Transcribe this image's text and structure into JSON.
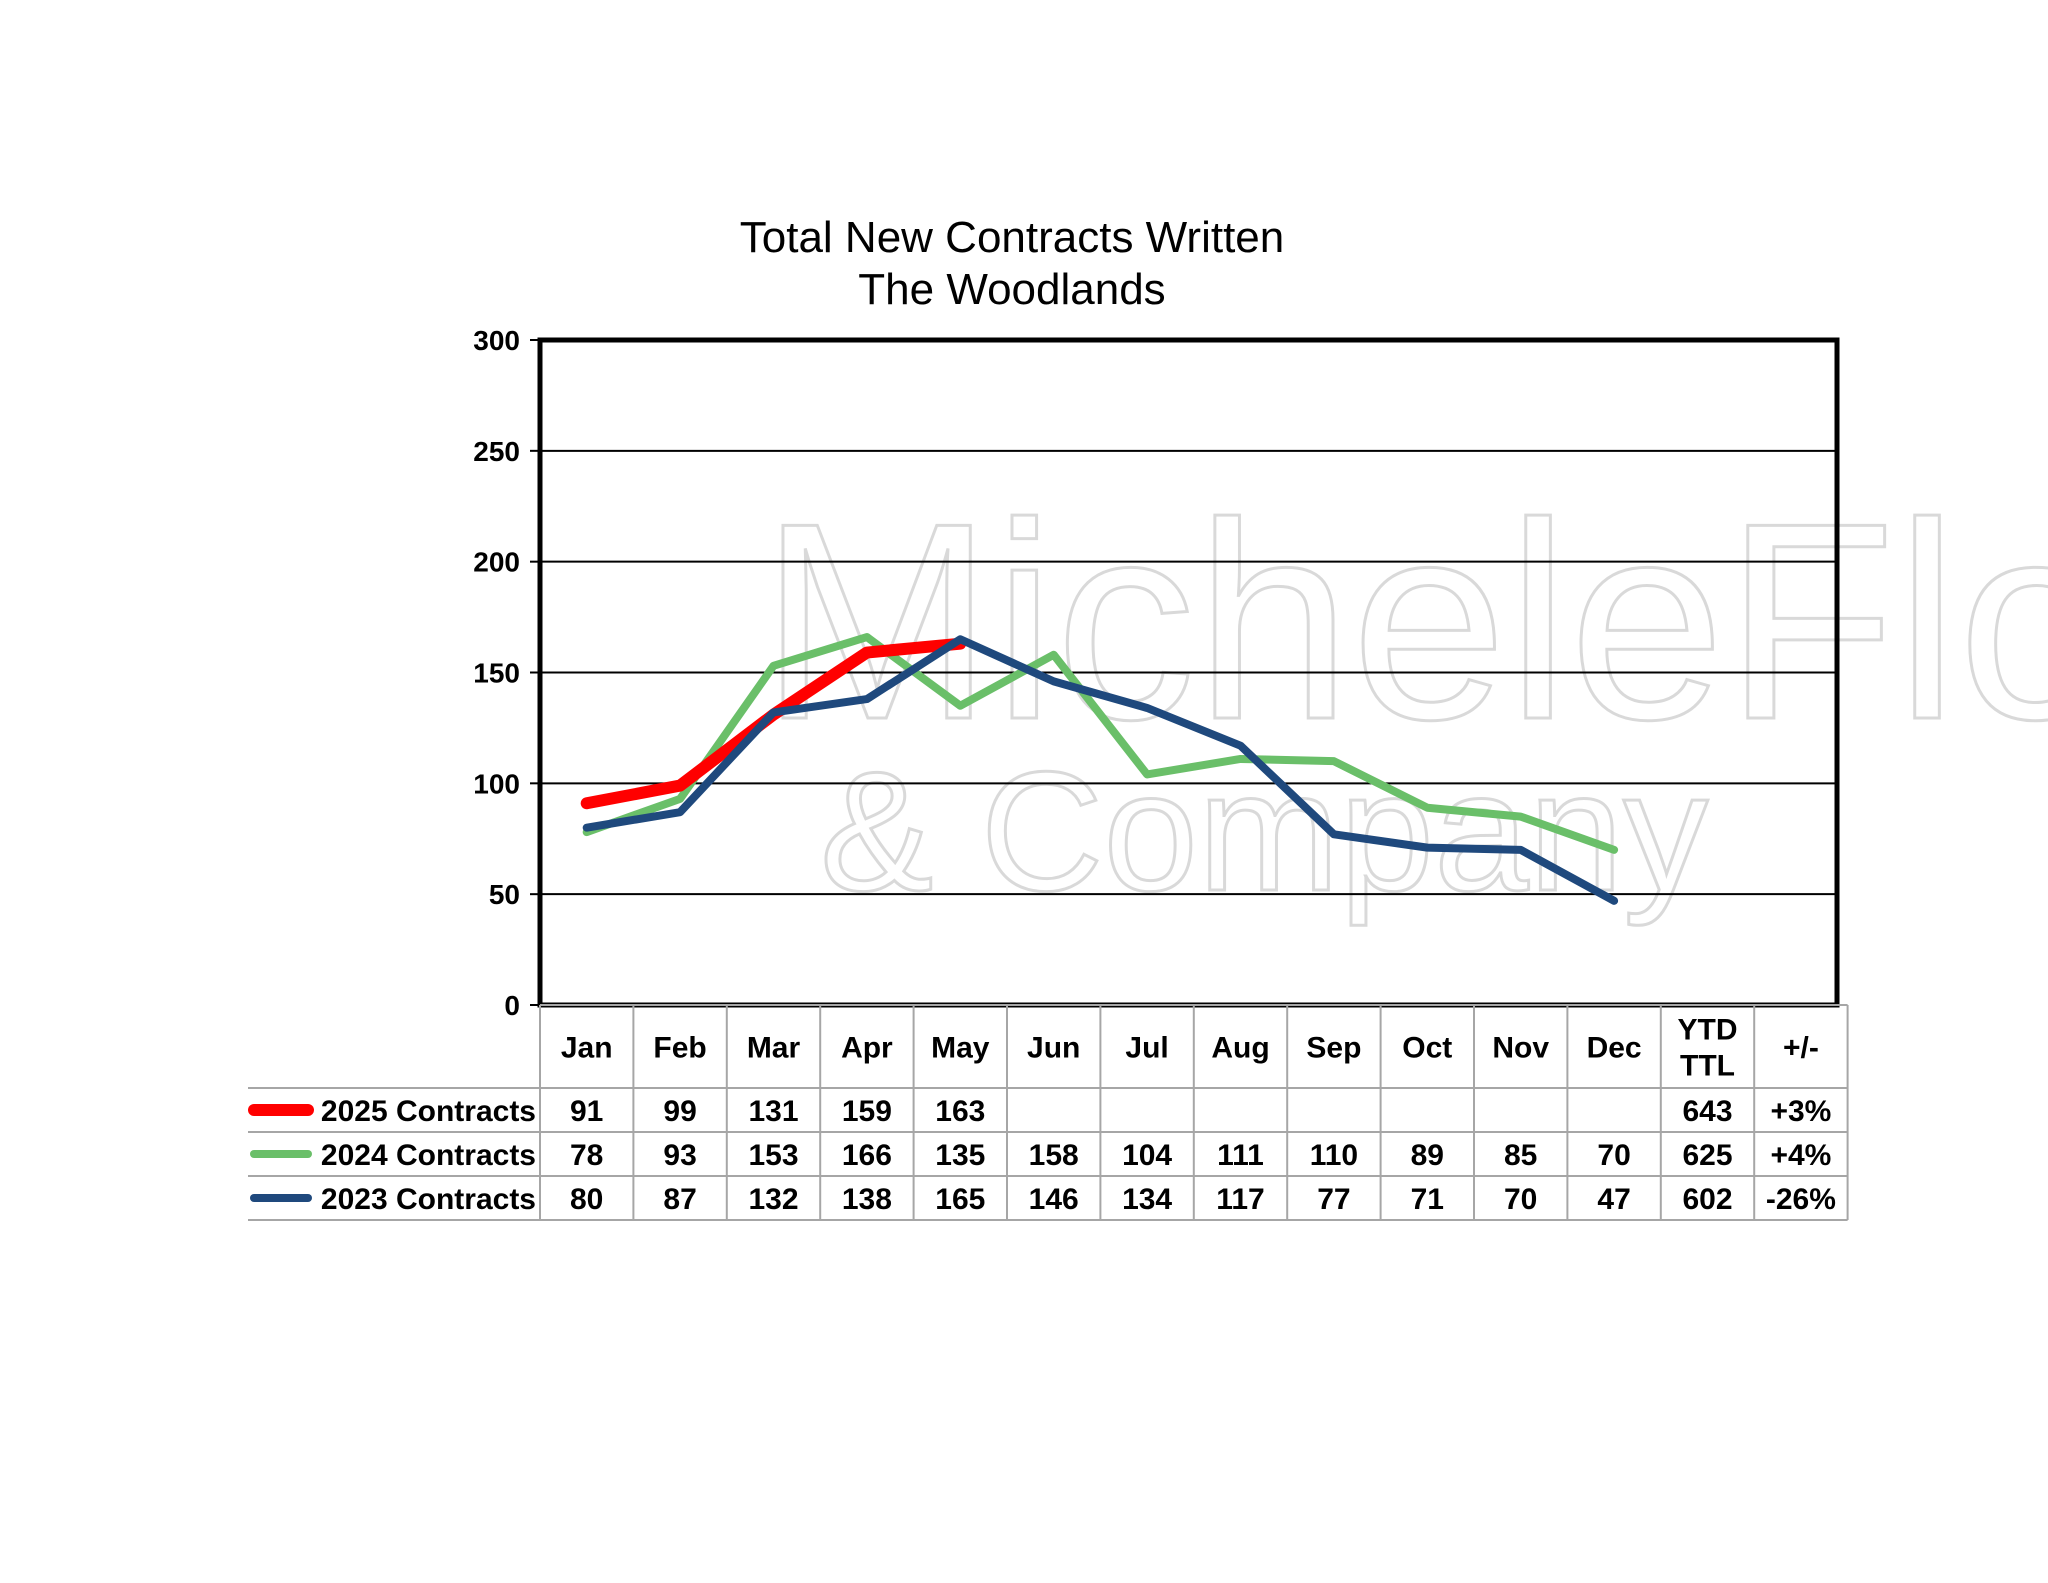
{
  "chart_data": {
    "type": "line",
    "title": "Total New Contracts Written",
    "subtitle": "The Woodlands",
    "categories": [
      "Jan",
      "Feb",
      "Mar",
      "Apr",
      "May",
      "Jun",
      "Jul",
      "Aug",
      "Sep",
      "Oct",
      "Nov",
      "Dec"
    ],
    "extra_columns": [
      "YTD\nTTL",
      "+/-"
    ],
    "ylim": [
      0,
      300
    ],
    "yticks": [
      0,
      50,
      100,
      150,
      200,
      250,
      300
    ],
    "grid": true,
    "legend": "data-table-left",
    "series": [
      {
        "name": "2025 Contracts",
        "color": "#ff0000",
        "values": [
          91,
          99,
          131,
          159,
          163,
          null,
          null,
          null,
          null,
          null,
          null,
          null
        ],
        "ytd": "643",
        "change": "+3%"
      },
      {
        "name": "2024 Contracts",
        "color": "#6abf69",
        "values": [
          78,
          93,
          153,
          166,
          135,
          158,
          104,
          111,
          110,
          89,
          85,
          70
        ],
        "ytd": "625",
        "change": "+4%"
      },
      {
        "name": "2023 Contracts",
        "color": "#1f497d",
        "values": [
          80,
          87,
          132,
          138,
          165,
          146,
          134,
          117,
          77,
          71,
          70,
          47
        ],
        "ytd": "602",
        "change": "-26%"
      }
    ],
    "watermark": {
      "line1": "MicheleFlory",
      "line2": "& Company"
    }
  }
}
